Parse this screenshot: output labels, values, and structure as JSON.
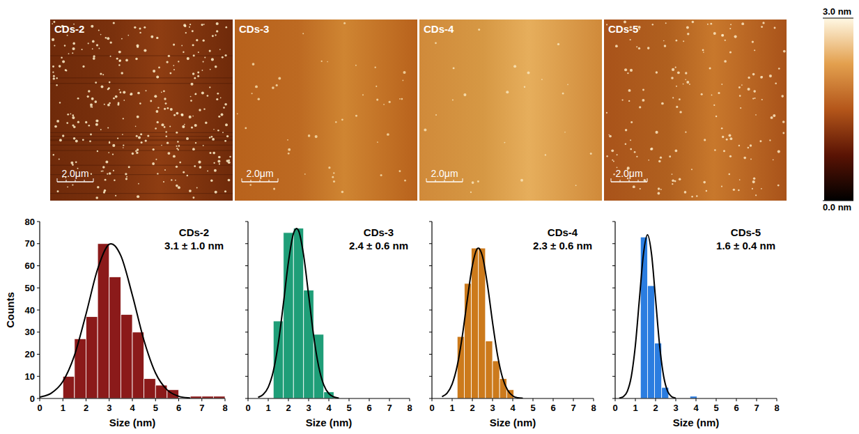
{
  "chart_data": [
    {
      "type": "histogram",
      "title": "CDs-2",
      "subtitle": "3.1 ± 1.0 nm",
      "x_label": "Size (nm)",
      "y_label": "Counts",
      "bins": [
        1.0,
        1.5,
        2.0,
        2.5,
        3.0,
        3.5,
        4.0,
        4.5,
        5.0,
        5.5,
        6.0,
        6.5,
        7.0,
        7.5,
        8.0
      ],
      "values": [
        10,
        27,
        37,
        70,
        55,
        38,
        30,
        9,
        6,
        4,
        0,
        1,
        1,
        1
      ],
      "color": "#8b1a1a",
      "xlim": [
        0,
        8
      ],
      "xticks": [
        0,
        1,
        2,
        3,
        4,
        5,
        6,
        7,
        8
      ],
      "ylim": [
        0,
        80
      ],
      "yticks": [
        0,
        10,
        20,
        30,
        40,
        50,
        60,
        70,
        80
      ],
      "fit": {
        "color": "#000000",
        "line_style": "solid",
        "x": [
          0,
          0.5,
          1.0,
          1.5,
          2.0,
          2.5,
          3.0,
          3.5,
          4.0,
          4.5,
          5.0,
          5.5,
          6.0,
          6.5
        ],
        "values": [
          0.6,
          2.4,
          7.7,
          19.5,
          38.2,
          58.5,
          69.7,
          64.6,
          46.7,
          26.3,
          11.5,
          3.9,
          1.0,
          0.2
        ]
      }
    },
    {
      "type": "histogram",
      "title": "CDs-3",
      "subtitle": "2.4 ± 0.6 nm",
      "x_label": "Size (nm)",
      "tick_labels": "x",
      "bins": [
        1.25,
        1.75,
        2.25,
        2.75,
        3.25,
        3.75,
        4.25
      ],
      "values": [
        35,
        75,
        77,
        49,
        29,
        3
      ],
      "color": "#1f9e78",
      "xlim": [
        0,
        8
      ],
      "xticks": [
        0,
        1,
        2,
        3,
        4,
        5,
        6,
        7,
        8
      ],
      "ylim": [
        0,
        80
      ],
      "yticks": [
        0,
        10,
        20,
        30,
        40,
        50,
        60,
        70,
        80
      ],
      "fit": {
        "color": "#000000",
        "line_style": "solid",
        "x": [
          0.5,
          0.75,
          1.0,
          1.25,
          1.5,
          1.75,
          2.0,
          2.25,
          2.5,
          2.75,
          3.0,
          3.25,
          3.5,
          3.75,
          4.0,
          4.25,
          4.5
        ],
        "values": [
          0.5,
          1.8,
          5.1,
          12.3,
          25.0,
          42.8,
          61.7,
          74.6,
          75.9,
          64.9,
          46.7,
          28.2,
          14.3,
          6.1,
          2.2,
          0.7,
          0.2
        ]
      }
    },
    {
      "type": "histogram",
      "title": "CDs-4",
      "subtitle": "2.3 ± 0.6 nm",
      "x_label": "Size (nm)",
      "tick_labels": "x",
      "bins": [
        1.25,
        1.6,
        1.95,
        2.3,
        2.65,
        3.0,
        3.35,
        3.7,
        4.05
      ],
      "values": [
        28,
        52,
        68,
        68,
        26,
        17,
        9,
        4
      ],
      "color": "#cc7a1c",
      "xlim": [
        0,
        8
      ],
      "xticks": [
        0,
        1,
        2,
        3,
        4,
        5,
        6,
        7,
        8
      ],
      "ylim": [
        0,
        80
      ],
      "yticks": [
        0,
        10,
        20,
        30,
        40,
        50,
        60,
        70,
        80
      ],
      "fit": {
        "color": "#000000",
        "line_style": "solid",
        "x": [
          0.5,
          0.75,
          1.0,
          1.25,
          1.5,
          1.75,
          2.0,
          2.25,
          2.5,
          2.75,
          3.0,
          3.25,
          3.5,
          3.75,
          4.0,
          4.25,
          4.5
        ],
        "values": [
          0.8,
          2.4,
          6.5,
          14.7,
          28.0,
          44.7,
          60.0,
          67.8,
          64.3,
          51.3,
          34.4,
          19.4,
          9.2,
          3.7,
          1.2,
          0.3,
          0.1
        ]
      }
    },
    {
      "type": "histogram",
      "title": "CDs-5",
      "subtitle": "1.6 ± 0.4 nm",
      "x_label": "Size (nm)",
      "tick_labels": "x",
      "bins": [
        1.25,
        1.6,
        1.95,
        2.3,
        2.65,
        3.0,
        3.35,
        3.7,
        4.05
      ],
      "values": [
        73,
        51,
        25,
        5,
        0,
        0,
        0,
        1
      ],
      "color": "#2b7de0",
      "xlim": [
        0,
        8
      ],
      "xticks": [
        0,
        1,
        2,
        3,
        4,
        5,
        6,
        7,
        8
      ],
      "ylim": [
        0,
        80
      ],
      "yticks": [
        0,
        10,
        20,
        30,
        40,
        50,
        60,
        70,
        80
      ],
      "fit": {
        "color": "#000000",
        "line_style": "solid",
        "x": [
          0.2,
          0.4,
          0.6,
          0.8,
          1.0,
          1.2,
          1.4,
          1.6,
          1.8,
          2.0,
          2.2,
          2.4,
          2.6,
          2.8,
          3.0
        ],
        "values": [
          0.2,
          0.8,
          3.2,
          10.0,
          24.0,
          44.9,
          65.3,
          74,
          65.3,
          44.9,
          24.0,
          10.0,
          3.2,
          0.8,
          0.2
        ]
      }
    }
  ],
  "afm_images": [
    {
      "label": "CDs-2",
      "scale_bar": "2.0μm"
    },
    {
      "label": "CDs-3",
      "scale_bar": "2.0μm"
    },
    {
      "label": "CDs-4",
      "scale_bar": "2.0μm"
    },
    {
      "label": "CDs-5",
      "scale_bar": "2.0μm"
    }
  ],
  "color_bar": {
    "range": [
      0,
      3
    ],
    "ticks": [
      {
        "value": 0,
        "label": "0.0 nm"
      },
      {
        "value": 3,
        "label": "3.0 nm"
      }
    ]
  }
}
